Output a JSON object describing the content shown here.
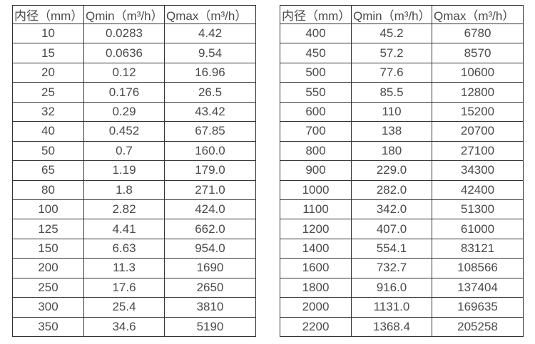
{
  "colors": {
    "background": "#ffffff",
    "table_border": "#333333",
    "table_text": "#4a4a4a"
  },
  "tables": [
    {
      "name": "flow-range-table-small-diameters",
      "headers": [
        "内径（mm）",
        "Qmin（m³/h）",
        "Qmax（m³/h）"
      ],
      "rows": [
        [
          "10",
          "0.0283",
          "4.42"
        ],
        [
          "15",
          "0.0636",
          "9.54"
        ],
        [
          "20",
          "0.12",
          "16.96"
        ],
        [
          "25",
          "0.176",
          "26.5"
        ],
        [
          "32",
          "0.29",
          "43.42"
        ],
        [
          "40",
          "0.452",
          "67.85"
        ],
        [
          "50",
          "0.7",
          "160.0"
        ],
        [
          "65",
          "1.19",
          "179.0"
        ],
        [
          "80",
          "1.8",
          "271.0"
        ],
        [
          "100",
          "2.82",
          "424.0"
        ],
        [
          "125",
          "4.41",
          "662.0"
        ],
        [
          "150",
          "6.63",
          "954.0"
        ],
        [
          "200",
          "11.3",
          "1690"
        ],
        [
          "250",
          "17.6",
          "2650"
        ],
        [
          "300",
          "25.4",
          "3810"
        ],
        [
          "350",
          "34.6",
          "5190"
        ]
      ]
    },
    {
      "name": "flow-range-table-large-diameters",
      "headers": [
        "内径（mm）",
        "Qmin（m³/h）",
        "Qmax（m³/h）"
      ],
      "rows": [
        [
          "400",
          "45.2",
          "6780"
        ],
        [
          "450",
          "57.2",
          "8570"
        ],
        [
          "500",
          "77.6",
          "10600"
        ],
        [
          "550",
          "85.5",
          "12800"
        ],
        [
          "600",
          "110",
          "15200"
        ],
        [
          "700",
          "138",
          "20700"
        ],
        [
          "800",
          "180",
          "27100"
        ],
        [
          "900",
          "229.0",
          "34300"
        ],
        [
          "1000",
          "282.0",
          "42400"
        ],
        [
          "1100",
          "342.0",
          "51300"
        ],
        [
          "1200",
          "407.0",
          "61000"
        ],
        [
          "1400",
          "554.1",
          "83121"
        ],
        [
          "1600",
          "732.7",
          "108566"
        ],
        [
          "1800",
          "916.0",
          "137404"
        ],
        [
          "2000",
          "1131.0",
          "169635"
        ],
        [
          "2200",
          "1368.4",
          "205258"
        ]
      ]
    }
  ]
}
